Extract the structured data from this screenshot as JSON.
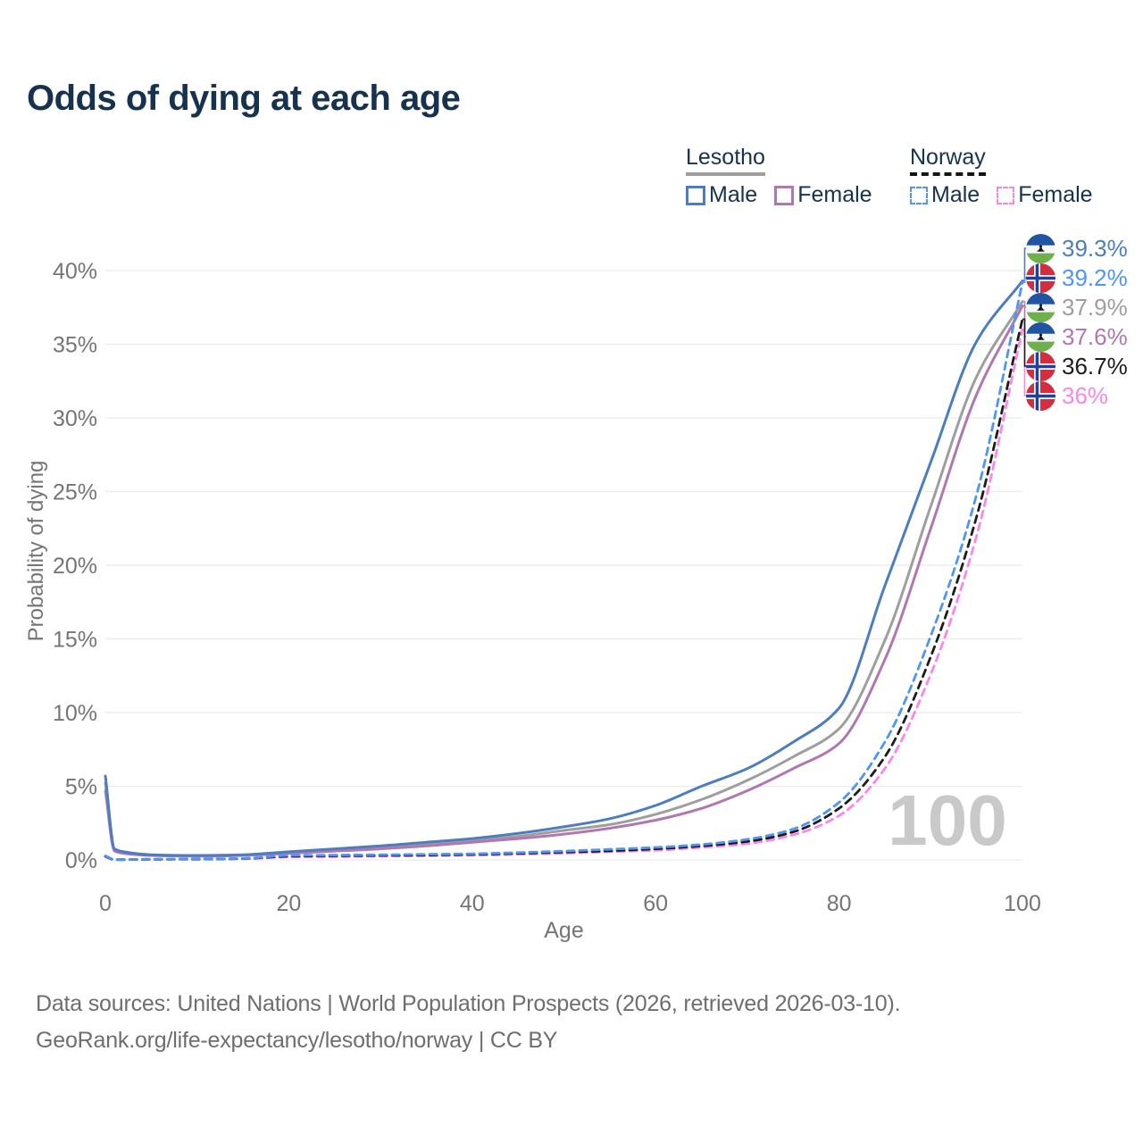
{
  "header": {
    "title": "Odds of dying at each age"
  },
  "legend": {
    "groups": [
      {
        "country": "Lesotho",
        "line_style": "solid",
        "line_color": "#9e9e9e",
        "items": [
          {
            "label": "Male",
            "color": "#4b7dc0",
            "dashed": false
          },
          {
            "label": "Female",
            "color": "#b177b0",
            "dashed": false
          }
        ]
      },
      {
        "country": "Norway",
        "line_style": "dashed",
        "line_color": "#141414",
        "items": [
          {
            "label": "Male",
            "color": "#4e95f7",
            "dashed": true
          },
          {
            "label": "Female",
            "color": "#fc85e9",
            "dashed": true
          }
        ]
      }
    ]
  },
  "chart_data": {
    "type": "line",
    "title": "Odds of dying at each age",
    "xlabel": "Age",
    "ylabel": "Probability of dying",
    "xlim": [
      0,
      100
    ],
    "ylim": [
      0,
      40
    ],
    "x_ticks": [
      0,
      20,
      40,
      60,
      80,
      100
    ],
    "y_ticks": [
      0,
      5,
      10,
      15,
      20,
      25,
      30,
      35,
      40
    ],
    "y_tick_suffix": "%",
    "grid": "horizontal",
    "legend_position": "top-right",
    "hovered_age": "100",
    "ages": [
      0,
      1,
      2,
      5,
      10,
      15,
      20,
      25,
      30,
      35,
      40,
      45,
      50,
      55,
      60,
      65,
      70,
      75,
      80,
      85,
      90,
      95,
      100
    ],
    "series": [
      {
        "key": "lesotho-total",
        "name": "Lesotho",
        "country": "Lesotho",
        "sex": "both",
        "color": "#9e9e9e",
        "dashed": false,
        "flag": "lesotho-flag-icon",
        "end_label": "37.9%",
        "label_row": 2,
        "values": [
          5.2,
          0.68,
          0.5,
          0.32,
          0.27,
          0.32,
          0.5,
          0.67,
          0.85,
          1.05,
          1.3,
          1.6,
          2.0,
          2.4,
          3.1,
          4.1,
          5.4,
          7.0,
          8.9,
          14.9,
          24.0,
          32.8,
          37.9
        ]
      },
      {
        "key": "lesotho-female",
        "name": "Lesotho Female",
        "country": "Lesotho",
        "sex": "female",
        "color": "#b177b0",
        "dashed": false,
        "flag": "lesotho-flag-icon",
        "end_label": "37.6%",
        "label_row": 3,
        "values": [
          4.7,
          0.6,
          0.45,
          0.3,
          0.25,
          0.3,
          0.45,
          0.6,
          0.75,
          0.95,
          1.2,
          1.45,
          1.75,
          2.15,
          2.7,
          3.5,
          4.7,
          6.2,
          7.9,
          13.6,
          22.5,
          31.6,
          37.6
        ]
      },
      {
        "key": "lesotho-male",
        "name": "Lesotho Male",
        "country": "Lesotho",
        "sex": "male",
        "color": "#4b7dc0",
        "dashed": false,
        "flag": "lesotho-flag-icon",
        "end_label": "39.3%",
        "label_row": 0,
        "values": [
          5.7,
          0.75,
          0.55,
          0.35,
          0.3,
          0.35,
          0.55,
          0.75,
          0.95,
          1.2,
          1.45,
          1.8,
          2.25,
          2.8,
          3.7,
          5.0,
          6.2,
          8.0,
          10.3,
          18.6,
          27.0,
          35.2,
          39.3
        ]
      },
      {
        "key": "norway-female",
        "name": "Norway Female",
        "country": "Norway",
        "sex": "female",
        "color": "#fc85e9",
        "dashed": true,
        "flag": "norway-flag-icon",
        "end_label": "36%",
        "label_row": 5,
        "values": [
          0.22,
          0.02,
          0.02,
          0.04,
          0.05,
          0.07,
          0.2,
          0.22,
          0.25,
          0.28,
          0.32,
          0.38,
          0.45,
          0.55,
          0.65,
          0.85,
          1.1,
          1.7,
          3.0,
          6.2,
          12.6,
          22.0,
          36.0
        ]
      },
      {
        "key": "norway-total",
        "name": "Norway",
        "country": "Norway",
        "sex": "both",
        "color": "#1c1c1c",
        "dashed": true,
        "flag": "norway-flag-icon",
        "end_label": "36.7%",
        "label_row": 4,
        "values": [
          0.25,
          0.02,
          0.02,
          0.04,
          0.05,
          0.09,
          0.25,
          0.28,
          0.3,
          0.33,
          0.37,
          0.44,
          0.53,
          0.62,
          0.75,
          0.95,
          1.25,
          1.9,
          3.5,
          7.0,
          13.8,
          23.3,
          36.7
        ]
      },
      {
        "key": "norway-male",
        "name": "Norway Male",
        "country": "Norway",
        "sex": "male",
        "color": "#4e95f7",
        "dashed": true,
        "flag": "norway-flag-icon",
        "end_label": "39.2%",
        "label_row": 1,
        "values": [
          0.28,
          0.03,
          0.02,
          0.05,
          0.06,
          0.1,
          0.3,
          0.33,
          0.35,
          0.38,
          0.42,
          0.5,
          0.6,
          0.72,
          0.85,
          1.05,
          1.4,
          2.1,
          3.9,
          8.0,
          15.2,
          24.8,
          39.2
        ]
      }
    ]
  },
  "footer": {
    "line1": "Data sources: United Nations | World Population Prospects (2026, retrieved 2026-03-10).",
    "line2": "GeoRank.org/life-expectancy/lesotho/norway | CC BY"
  }
}
